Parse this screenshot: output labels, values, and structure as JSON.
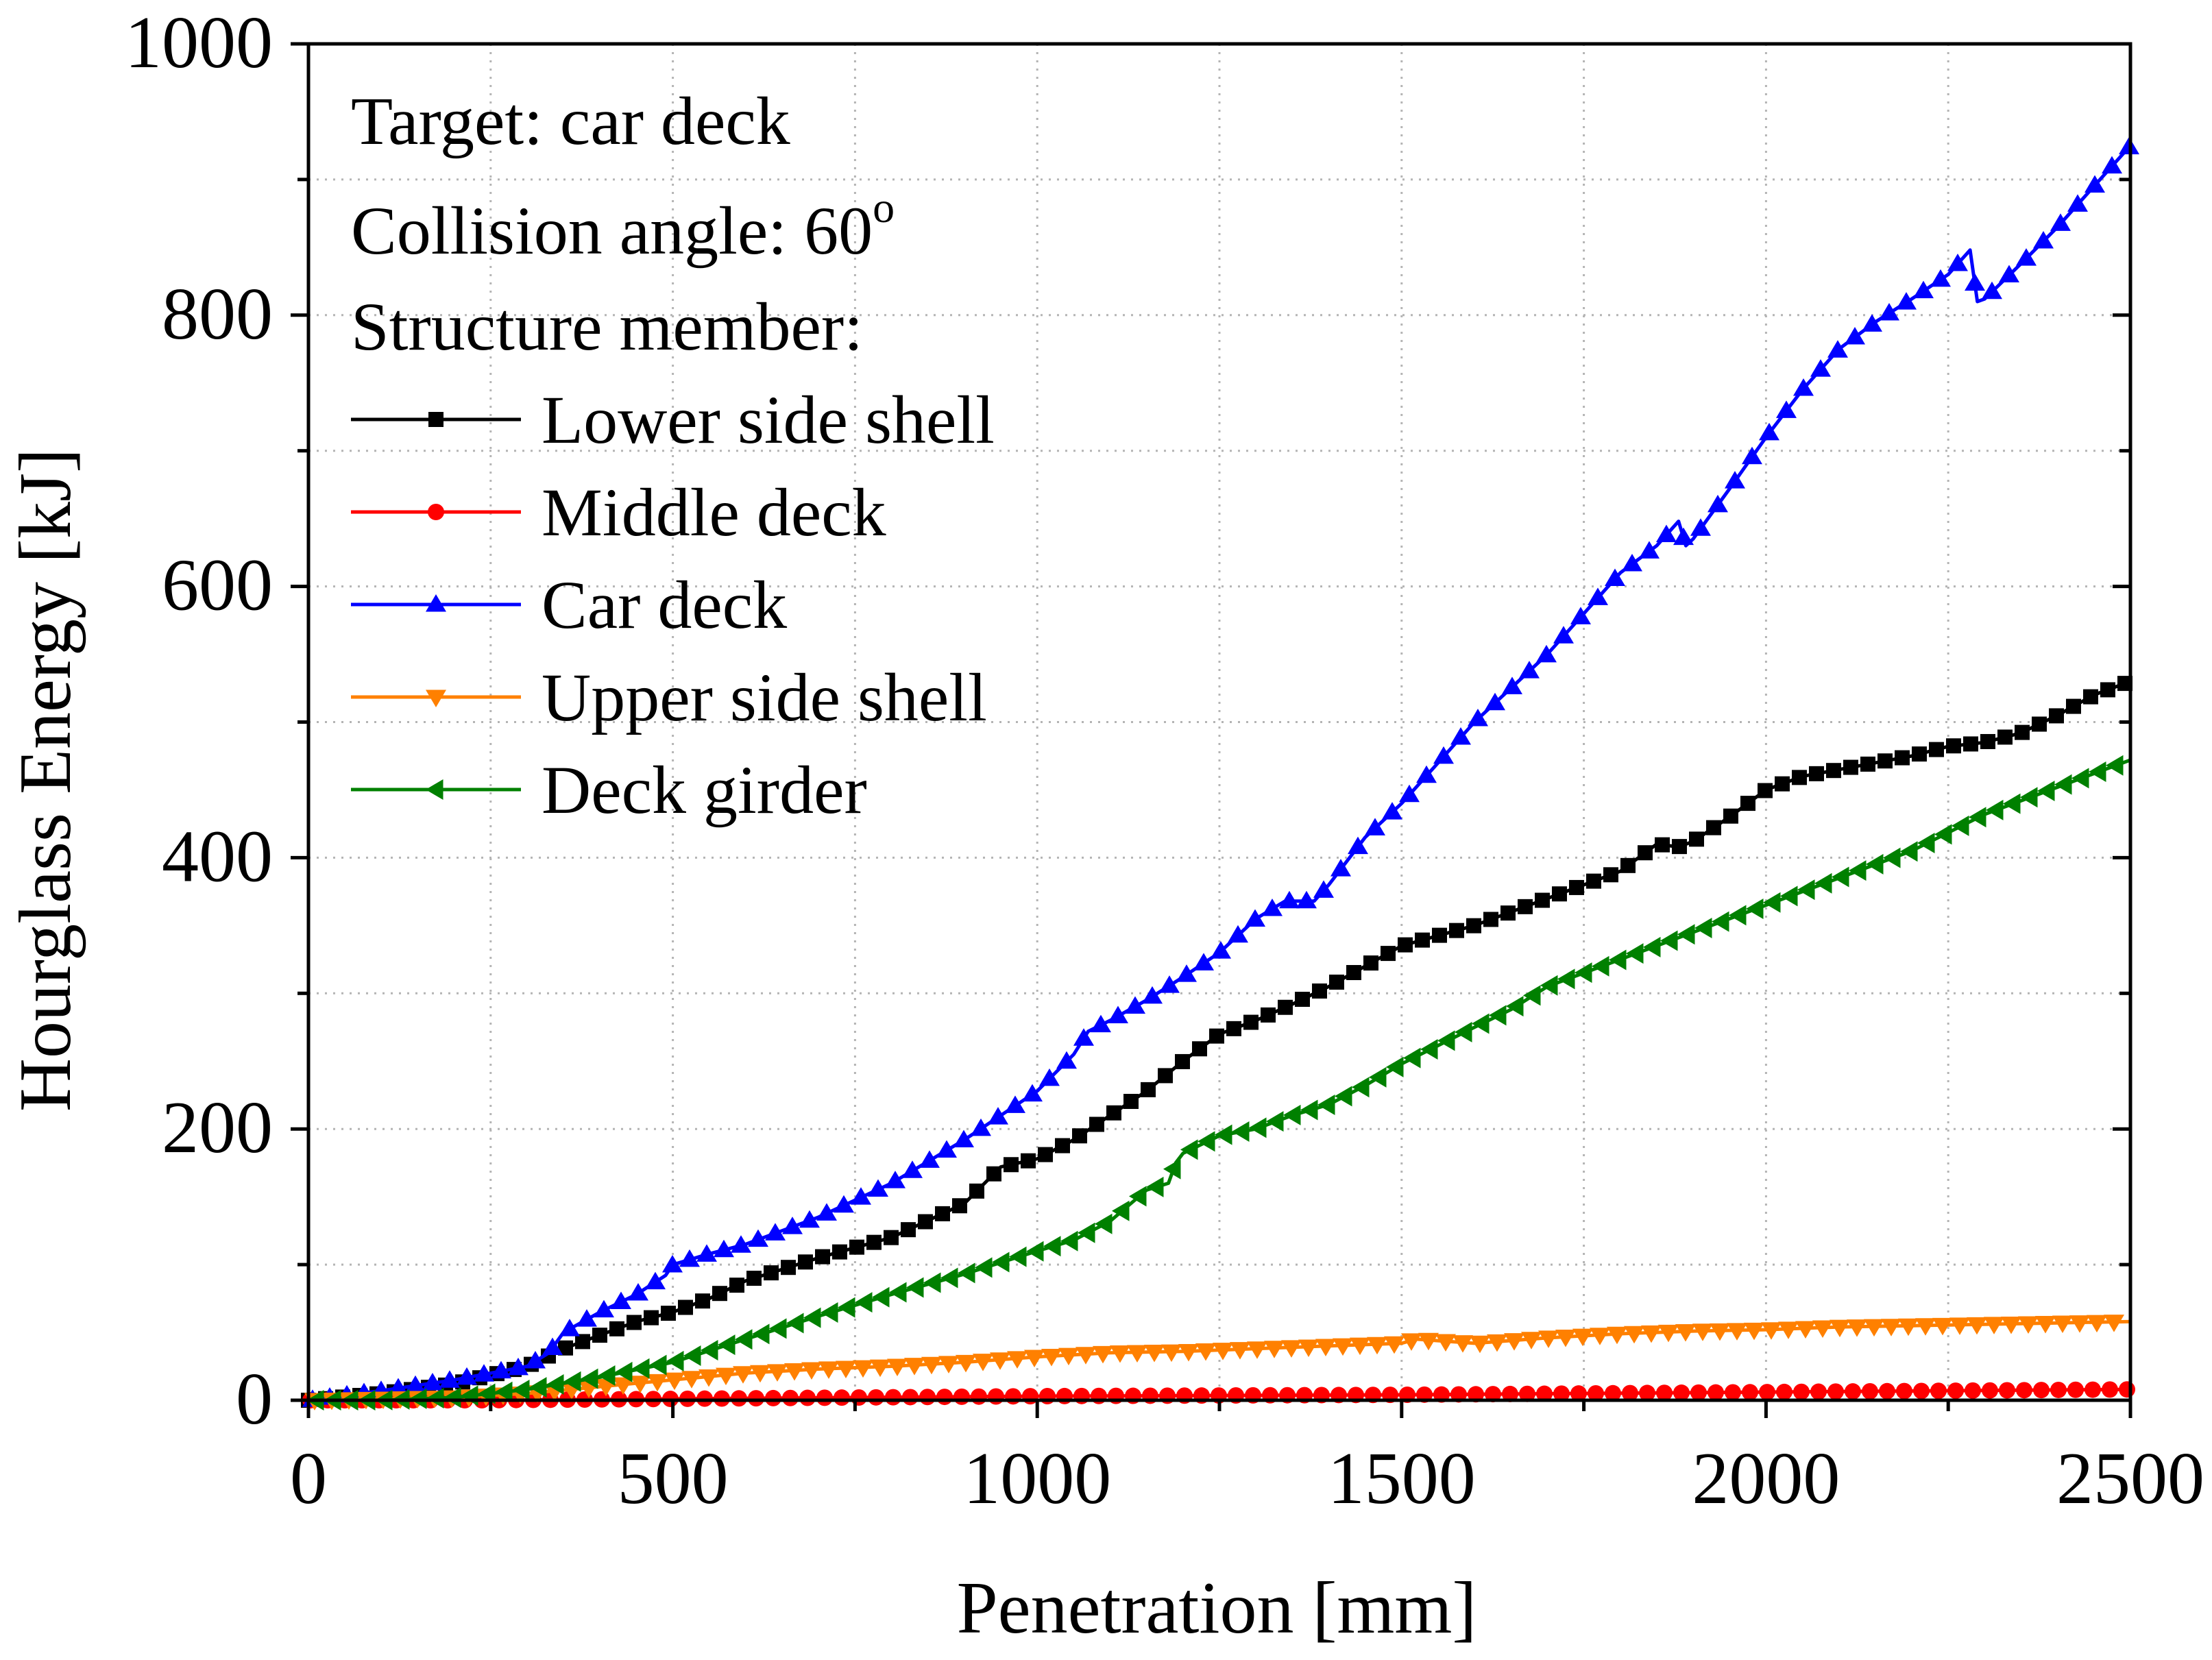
{
  "chart_data": {
    "type": "line",
    "title": "",
    "xlabel": "Penetration [mm]",
    "ylabel": "Hourglass Energy [kJ]",
    "xlim": [
      0,
      2500
    ],
    "ylim": [
      0,
      1000
    ],
    "xticks": [
      0,
      500,
      1000,
      1500,
      2000,
      2500
    ],
    "yticks": [
      0,
      200,
      400,
      600,
      800,
      1000
    ],
    "xtick_labels": [
      "0",
      "500",
      "1000",
      "1500",
      "2000",
      "2500"
    ],
    "ytick_labels": [
      "0",
      "200",
      "400",
      "600",
      "800",
      "1000"
    ],
    "grid": true,
    "legend_placement": "top-left",
    "annotations": {
      "target": "Target: car deck",
      "angle_prefix": "Collision angle: 60",
      "angle_sup": "o",
      "member_heading": "Structure member:"
    },
    "series": [
      {
        "name": "Lower side shell",
        "color": "#000000",
        "marker": "square",
        "x": [
          0,
          100,
          200,
          300,
          350,
          400,
          450,
          500,
          550,
          600,
          700,
          800,
          900,
          950,
          1000,
          1050,
          1100,
          1150,
          1200,
          1250,
          1300,
          1350,
          1400,
          1450,
          1500,
          1600,
          1700,
          1800,
          1850,
          1880,
          1900,
          1950,
          2000,
          2050,
          2100,
          2150,
          2200,
          2250,
          2300,
          2350,
          2400,
          2450,
          2500
        ],
        "y": [
          0,
          5,
          12,
          25,
          38,
          48,
          58,
          65,
          75,
          88,
          105,
          120,
          145,
          172,
          178,
          192,
          210,
          228,
          250,
          270,
          280,
          292,
          305,
          320,
          335,
          350,
          370,
          390,
          410,
          408,
          412,
          430,
          450,
          460,
          465,
          470,
          475,
          482,
          485,
          492,
          505,
          520,
          530
        ]
      },
      {
        "name": "Middle deck",
        "color": "#ff0000",
        "marker": "circle",
        "x": [
          0,
          250,
          500,
          750,
          1000,
          1250,
          1500,
          1750,
          2000,
          2250,
          2500
        ],
        "y": [
          0,
          0,
          1,
          2,
          3,
          3.5,
          4,
          5,
          6,
          7,
          8
        ]
      },
      {
        "name": "Car deck",
        "color": "#0000ff",
        "marker": "triangle-up",
        "x": [
          0,
          100,
          200,
          300,
          330,
          350,
          400,
          450,
          490,
          500,
          550,
          600,
          700,
          800,
          900,
          950,
          1000,
          1050,
          1070,
          1100,
          1150,
          1200,
          1250,
          1300,
          1340,
          1380,
          1400,
          1450,
          1500,
          1550,
          1600,
          1650,
          1700,
          1750,
          1800,
          1850,
          1880,
          1890,
          1900,
          1950,
          2000,
          2050,
          2100,
          2150,
          2200,
          2250,
          2280,
          2290,
          2300,
          2350,
          2400,
          2450,
          2500
        ],
        "y": [
          0,
          7,
          15,
          25,
          35,
          50,
          65,
          78,
          92,
          100,
          108,
          115,
          135,
          160,
          192,
          210,
          228,
          255,
          272,
          280,
          295,
          312,
          330,
          355,
          368,
          368,
          380,
          415,
          440,
          470,
          500,
          525,
          550,
          580,
          610,
          630,
          648,
          630,
          635,
          672,
          710,
          745,
          775,
          795,
          812,
          830,
          848,
          810,
          812,
          838,
          865,
          895,
          925
        ]
      },
      {
        "name": "Upper side shell",
        "color": "#ff8000",
        "marker": "triangle-down",
        "x": [
          0,
          100,
          200,
          300,
          400,
          500,
          600,
          700,
          800,
          900,
          1000,
          1100,
          1200,
          1300,
          1400,
          1500,
          1520,
          1600,
          1700,
          1800,
          1900,
          2000,
          2100,
          2200,
          2300,
          2400,
          2500
        ],
        "y": [
          0,
          1,
          2,
          5,
          10,
          15,
          20,
          23,
          25,
          28,
          32,
          35,
          36,
          38,
          40,
          42,
          45,
          42,
          46,
          49,
          51,
          52,
          54,
          55,
          56,
          57,
          58
        ]
      },
      {
        "name": "Deck girder",
        "color": "#008000",
        "marker": "triangle-left",
        "x": [
          0,
          100,
          200,
          300,
          400,
          500,
          600,
          700,
          800,
          900,
          1000,
          1050,
          1100,
          1150,
          1180,
          1190,
          1200,
          1250,
          1300,
          1350,
          1400,
          1450,
          1500,
          1600,
          1650,
          1700,
          1750,
          1800,
          1900,
          2000,
          2100,
          2200,
          2300,
          2400,
          2500
        ],
        "y": [
          0,
          0,
          2,
          8,
          17,
          28,
          45,
          62,
          78,
          93,
          110,
          118,
          132,
          155,
          160,
          175,
          182,
          195,
          200,
          210,
          218,
          232,
          248,
          275,
          288,
          305,
          315,
          325,
          345,
          365,
          385,
          405,
          432,
          452,
          472
        ]
      }
    ]
  }
}
